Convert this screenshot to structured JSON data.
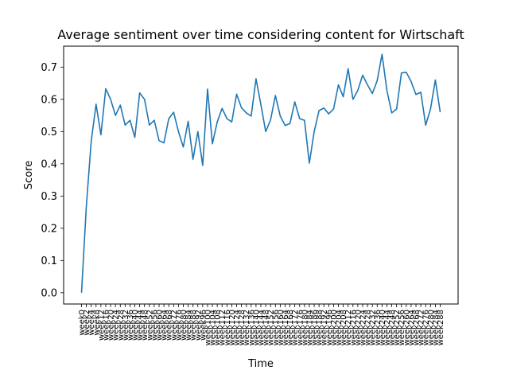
{
  "chart_data": {
    "type": "line",
    "title": "Average sentiment over time considering content for Wirtschaft",
    "xlabel": "Time",
    "ylabel": "Score",
    "ylim": [
      -0.035,
      0.765
    ],
    "yticks": [
      0.0,
      0.1,
      0.2,
      0.3,
      0.4,
      0.5,
      0.6,
      0.7
    ],
    "ytick_labels": [
      "0.0",
      "0.1",
      "0.2",
      "0.3",
      "0.4",
      "0.5",
      "0.6",
      "0.7"
    ],
    "grid": false,
    "colors": {
      "line": "#1f77b4"
    },
    "x": [
      "week0",
      "week2",
      "week4",
      "week8",
      "week12",
      "week16",
      "week20",
      "week24",
      "week28",
      "week32",
      "week36",
      "week40",
      "week44",
      "week48",
      "week52",
      "week56",
      "week60",
      "week64",
      "week68",
      "week72",
      "week76",
      "week80",
      "week84",
      "week88",
      "week92",
      "week96",
      "week100",
      "week104",
      "week108",
      "week112",
      "week116",
      "week120",
      "week124",
      "week128",
      "week132",
      "week136",
      "week140",
      "week144",
      "week148",
      "week152",
      "week156",
      "week160",
      "week164",
      "week168",
      "week172",
      "week176",
      "week180",
      "week184",
      "week186",
      "week188",
      "week192",
      "week196",
      "week200",
      "week204",
      "week208",
      "week212",
      "week216",
      "week220",
      "week224",
      "week228",
      "week232",
      "week236",
      "week240",
      "week244",
      "week248",
      "week252",
      "week256",
      "week260",
      "week264",
      "week268",
      "week272",
      "week276",
      "week280",
      "week284",
      "week288"
    ],
    "values": [
      0.0,
      0.27,
      0.47,
      0.585,
      0.49,
      0.633,
      0.6,
      0.55,
      0.582,
      0.52,
      0.535,
      0.482,
      0.62,
      0.6,
      0.52,
      0.535,
      0.472,
      0.465,
      0.54,
      0.56,
      0.5,
      0.452,
      0.532,
      0.414,
      0.5,
      0.395,
      0.632,
      0.462,
      0.53,
      0.572,
      0.54,
      0.53,
      0.616,
      0.574,
      0.558,
      0.548,
      0.664,
      0.584,
      0.5,
      0.536,
      0.612,
      0.548,
      0.519,
      0.525,
      0.592,
      0.54,
      0.535,
      0.402,
      0.5,
      0.565,
      0.573,
      0.555,
      0.57,
      0.645,
      0.608,
      0.695,
      0.6,
      0.628,
      0.675,
      0.645,
      0.618,
      0.658,
      0.74,
      0.628,
      0.558,
      0.57,
      0.682,
      0.684,
      0.655,
      0.615,
      0.622,
      0.52,
      0.57,
      0.66,
      0.56
    ]
  }
}
